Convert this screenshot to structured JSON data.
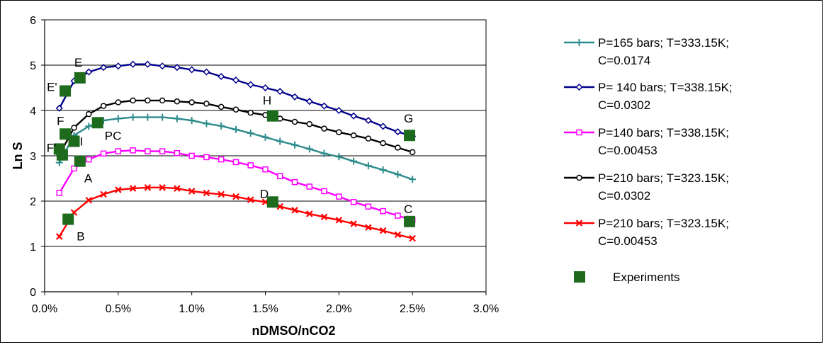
{
  "chart_data": {
    "type": "line",
    "xlabel": "nDMSO/nCO2",
    "ylabel": "Ln S",
    "xlim": [
      0.0,
      3.0
    ],
    "ylim": [
      0,
      6
    ],
    "x_ticks": [
      "0.0%",
      "0.5%",
      "1.0%",
      "1.5%",
      "2.0%",
      "2.5%",
      "3.0%"
    ],
    "y_ticks": [
      "0",
      "1",
      "2",
      "3",
      "4",
      "5",
      "6"
    ],
    "grid": "horizontal",
    "legend_position": "right",
    "series": [
      {
        "name": "P=165 bars; T=333.15K; C=0.0174",
        "color": "#2e8b8b",
        "marker": "plus",
        "x": [
          0.1,
          0.2,
          0.3,
          0.4,
          0.5,
          0.6,
          0.7,
          0.8,
          0.9,
          1.0,
          1.1,
          1.2,
          1.3,
          1.4,
          1.5,
          1.6,
          1.7,
          1.8,
          1.9,
          2.0,
          2.1,
          2.2,
          2.3,
          2.4,
          2.5
        ],
        "y": [
          2.85,
          3.45,
          3.65,
          3.78,
          3.82,
          3.85,
          3.85,
          3.85,
          3.82,
          3.78,
          3.71,
          3.66,
          3.58,
          3.5,
          3.41,
          3.32,
          3.24,
          3.15,
          3.05,
          2.98,
          2.88,
          2.78,
          2.69,
          2.59,
          2.48
        ]
      },
      {
        "name": "P= 140 bars; T=338.15K; C=0.0302",
        "color": "#00008b",
        "marker": "diamond",
        "x": [
          0.1,
          0.2,
          0.3,
          0.4,
          0.5,
          0.6,
          0.7,
          0.8,
          0.9,
          1.0,
          1.1,
          1.2,
          1.3,
          1.4,
          1.5,
          1.6,
          1.7,
          1.8,
          1.9,
          2.0,
          2.1,
          2.2,
          2.3,
          2.4,
          2.5
        ],
        "y": [
          4.05,
          4.65,
          4.85,
          4.95,
          4.98,
          5.02,
          5.02,
          4.98,
          4.95,
          4.9,
          4.85,
          4.75,
          4.67,
          4.57,
          4.5,
          4.42,
          4.3,
          4.2,
          4.1,
          4.0,
          3.88,
          3.78,
          3.65,
          3.53,
          3.43
        ]
      },
      {
        "name": "P=140 bars; T=338.15K; C=0.00453",
        "color": "#ff00ff",
        "marker": "square",
        "x": [
          0.1,
          0.2,
          0.3,
          0.4,
          0.5,
          0.6,
          0.7,
          0.8,
          0.9,
          1.0,
          1.1,
          1.2,
          1.3,
          1.4,
          1.5,
          1.6,
          1.7,
          1.8,
          1.9,
          2.0,
          2.1,
          2.2,
          2.3,
          2.4,
          2.5
        ],
        "y": [
          2.18,
          2.72,
          2.92,
          3.05,
          3.1,
          3.12,
          3.1,
          3.1,
          3.06,
          3.0,
          2.97,
          2.92,
          2.86,
          2.79,
          2.7,
          2.55,
          2.42,
          2.32,
          2.22,
          2.1,
          1.98,
          1.88,
          1.78,
          1.68,
          1.58
        ]
      },
      {
        "name": "P=210 bars; T=323.15K; C=0.0302",
        "color": "#000000",
        "marker": "circle",
        "x": [
          0.1,
          0.2,
          0.3,
          0.4,
          0.5,
          0.6,
          0.7,
          0.8,
          0.9,
          1.0,
          1.1,
          1.2,
          1.3,
          1.4,
          1.5,
          1.6,
          1.7,
          1.8,
          1.9,
          2.0,
          2.1,
          2.2,
          2.3,
          2.4,
          2.5
        ],
        "y": [
          3.02,
          3.62,
          3.92,
          4.1,
          4.18,
          4.22,
          4.22,
          4.22,
          4.2,
          4.18,
          4.15,
          4.08,
          4.02,
          3.95,
          3.9,
          3.82,
          3.75,
          3.7,
          3.6,
          3.52,
          3.45,
          3.38,
          3.28,
          3.18,
          3.08
        ]
      },
      {
        "name": "P=210 bars; T=323.15K; C=0.00453",
        "color": "#ff0000",
        "marker": "x",
        "x": [
          0.1,
          0.2,
          0.3,
          0.4,
          0.5,
          0.6,
          0.7,
          0.8,
          0.9,
          1.0,
          1.1,
          1.2,
          1.3,
          1.4,
          1.5,
          1.6,
          1.7,
          1.8,
          1.9,
          2.0,
          2.1,
          2.2,
          2.3,
          2.4,
          2.5
        ],
        "y": [
          1.22,
          1.75,
          2.02,
          2.15,
          2.25,
          2.28,
          2.3,
          2.3,
          2.28,
          2.22,
          2.18,
          2.15,
          2.1,
          2.03,
          1.98,
          1.88,
          1.8,
          1.72,
          1.65,
          1.58,
          1.5,
          1.42,
          1.35,
          1.26,
          1.18
        ]
      }
    ],
    "experiments": {
      "name": "Experiments",
      "color": "#1e6b1e",
      "marker": "square-filled",
      "points": [
        {
          "label": "E'",
          "x": 0.14,
          "y": 4.43
        },
        {
          "label": "E",
          "x": 0.24,
          "y": 4.72
        },
        {
          "label": "F",
          "x": 0.14,
          "y": 3.48
        },
        {
          "label": "F'",
          "x": 0.1,
          "y": 3.15
        },
        {
          "label": "",
          "x": 0.12,
          "y": 3.02
        },
        {
          "label": "I",
          "x": 0.2,
          "y": 3.32
        },
        {
          "label": "PC",
          "x": 0.36,
          "y": 3.73
        },
        {
          "label": "A",
          "x": 0.24,
          "y": 2.88
        },
        {
          "label": "B",
          "x": 0.16,
          "y": 1.6
        },
        {
          "label": "H",
          "x": 1.55,
          "y": 3.88
        },
        {
          "label": "D",
          "x": 1.55,
          "y": 1.98
        },
        {
          "label": "G",
          "x": 2.48,
          "y": 3.45
        },
        {
          "label": "C",
          "x": 2.48,
          "y": 1.55
        }
      ]
    }
  },
  "legend": [
    {
      "line1": "P=165 bars; T=333.15K;",
      "line2": "C=0.0174"
    },
    {
      "line1": "P= 140 bars; T=338.15K;",
      "line2": "C=0.0302"
    },
    {
      "line1": "P=140 bars; T=338.15K;",
      "line2": "C=0.00453"
    },
    {
      "line1": "P=210 bars; T=323.15K;",
      "line2": "C=0.0302"
    },
    {
      "line1": "P=210 bars; T=323.15K;",
      "line2": "C=0.00453"
    },
    {
      "line1": "Experiments",
      "line2": ""
    }
  ]
}
